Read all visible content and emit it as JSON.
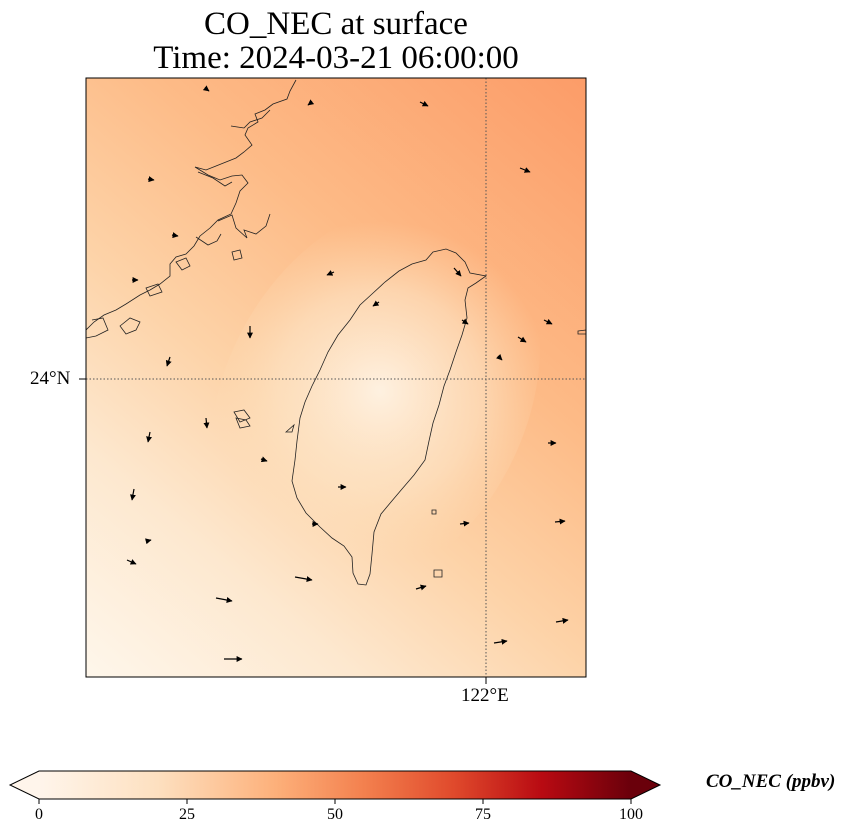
{
  "title_line1": "CO_NEC at surface",
  "title_line2": "Time: 2024-03-21 06:00:00",
  "map": {
    "lat_tick_label": "24°N",
    "lon_tick_label": "122°E",
    "gridline_style": "dotted",
    "features": [
      "coastline",
      "wind-vectors",
      "gridlines"
    ],
    "field_color_range": [
      "#fef6ea",
      "#fc9d69"
    ]
  },
  "colorbar": {
    "label": "CO_NEC (ppbv)",
    "ticks": [
      "0",
      "25",
      "50",
      "75",
      "100"
    ],
    "range": [
      0,
      100
    ],
    "extend": "both",
    "colormap": [
      "#fff5eb",
      "#fdd4a5",
      "#fdae6b",
      "#f16913",
      "#d94801",
      "#a50f15",
      "#67000d"
    ]
  }
}
